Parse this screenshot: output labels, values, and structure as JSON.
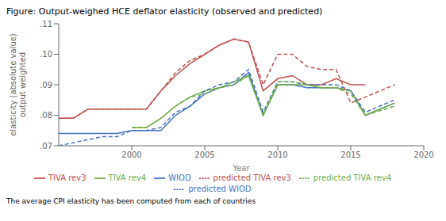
{
  "chart_data": {
    "type": "line",
    "title": "Figure: Output-weighed HCE deflator elasticity (observed and predicted)",
    "x_label": "Year",
    "y_label": "elasticity (absolute value)\noutput weighted",
    "annotations": [
      "The average CPI elasticity has been computed from each of countries"
    ],
    "xlim": [
      1995,
      2020
    ],
    "ylim": [
      0.07,
      0.11
    ],
    "xticks": [
      2000,
      2005,
      2010,
      2015,
      2020
    ],
    "yticks": [
      {
        "value": 0.07,
        "label": ".07"
      },
      {
        "value": 0.08,
        "label": ".08"
      },
      {
        "value": 0.09,
        "label": ".09"
      },
      {
        "value": 0.1,
        "label": ".10"
      },
      {
        "value": 0.11,
        "label": ".11"
      }
    ],
    "grid": false,
    "legend": "bottom",
    "series": [
      {
        "name": "WIOD",
        "color": "#4472c4",
        "line_style": "solid",
        "x": [
          1995,
          1996,
          1997,
          1998,
          1999,
          2000,
          2001,
          2002,
          2003,
          2004,
          2005,
          2006,
          2007,
          2008,
          2009,
          2010,
          2011,
          2012,
          2013,
          2014,
          2015,
          2016,
          2018
        ],
        "values": [
          0.074,
          0.074,
          0.074,
          0.074,
          0.074,
          0.075,
          0.075,
          0.075,
          0.08,
          0.083,
          0.087,
          0.089,
          0.09,
          0.094,
          0.08,
          0.09,
          0.09,
          0.089,
          0.089,
          0.089,
          0.088,
          0.08,
          0.084
        ]
      },
      {
        "name": "TIVA rev3",
        "color": "#c0504d",
        "line_style": "solid",
        "x": [
          1995,
          1996,
          1997,
          1998,
          1999,
          2000,
          2001,
          2002,
          2003,
          2004,
          2005,
          2006,
          2007,
          2008,
          2009,
          2010,
          2011,
          2012,
          2013,
          2014,
          2015,
          2016
        ],
        "values": [
          0.079,
          0.079,
          0.082,
          0.082,
          0.082,
          0.082,
          0.082,
          0.088,
          0.093,
          0.097,
          0.1,
          0.103,
          0.105,
          0.104,
          0.088,
          0.092,
          0.093,
          0.09,
          0.09,
          0.092,
          0.09,
          0.09
        ]
      },
      {
        "name": "TIVA rev4",
        "color": "#70ad47",
        "line_style": "solid",
        "x": [
          2000,
          2001,
          2002,
          2003,
          2004,
          2005,
          2006,
          2007,
          2008,
          2009,
          2010,
          2011,
          2012,
          2013,
          2014,
          2015,
          2016,
          2018
        ],
        "values": [
          0.076,
          0.076,
          0.079,
          0.083,
          0.086,
          0.088,
          0.089,
          0.091,
          0.093,
          0.08,
          0.09,
          0.09,
          0.09,
          0.089,
          0.089,
          0.088,
          0.08,
          0.084
        ]
      },
      {
        "name": "predicted WIOD",
        "color": "#4472c4",
        "line_style": "dashed",
        "x": [
          1995,
          1996,
          1997,
          1998,
          1999,
          2000,
          2001,
          2002,
          2003,
          2004,
          2005,
          2006,
          2007,
          2008,
          2009,
          2010,
          2011,
          2012,
          2013,
          2014,
          2015,
          2016,
          2018
        ],
        "values": [
          0.07,
          0.071,
          0.072,
          0.073,
          0.073,
          0.075,
          0.075,
          0.076,
          0.081,
          0.083,
          0.088,
          0.09,
          0.091,
          0.095,
          0.081,
          0.091,
          0.091,
          0.09,
          0.09,
          0.09,
          0.088,
          0.081,
          0.085
        ]
      },
      {
        "name": "predicted TIVA rev3",
        "color": "#c0504d",
        "line_style": "dashed",
        "x": [
          1995,
          1996,
          1997,
          1998,
          1999,
          2000,
          2001,
          2002,
          2003,
          2004,
          2005,
          2006,
          2007,
          2008,
          2009,
          2010,
          2011,
          2012,
          2013,
          2014,
          2015,
          2016,
          2018
        ],
        "values": [
          0.079,
          0.079,
          0.082,
          0.082,
          0.082,
          0.082,
          0.082,
          0.088,
          0.094,
          0.098,
          0.1,
          0.103,
          0.105,
          0.104,
          0.09,
          0.1,
          0.1,
          0.096,
          0.095,
          0.095,
          0.084,
          0.086,
          0.09
        ]
      },
      {
        "name": "predicted TIVA rev4",
        "color": "#70ad47",
        "line_style": "dashed",
        "x": [
          2000,
          2001,
          2002,
          2003,
          2004,
          2005,
          2006,
          2007,
          2008,
          2009,
          2010,
          2011,
          2012,
          2013,
          2014,
          2015,
          2016,
          2018
        ],
        "values": [
          0.076,
          0.076,
          0.079,
          0.083,
          0.086,
          0.087,
          0.089,
          0.09,
          0.093,
          0.08,
          0.091,
          0.091,
          0.09,
          0.089,
          0.089,
          0.087,
          0.08,
          0.083
        ]
      }
    ]
  }
}
